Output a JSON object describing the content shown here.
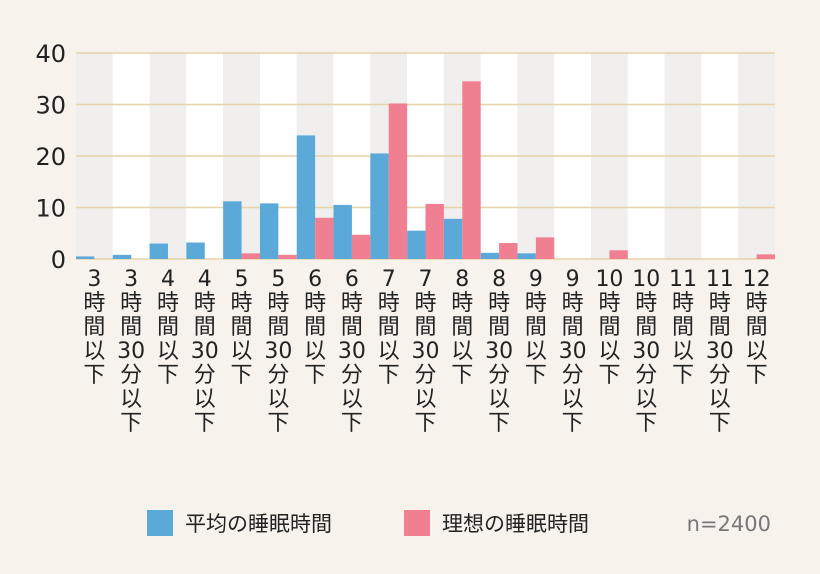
{
  "chart_data": {
    "type": "bar",
    "categories": [
      "3時間以下",
      "3時間30分以下",
      "4時間以下",
      "4時間30分以下",
      "5時間以下",
      "5時間30分以下",
      "6時間以下",
      "6時間30分以下",
      "7時間以下",
      "7時間30分以下",
      "8時間以下",
      "8時間30分以下",
      "9時間以下",
      "9時間30分以下",
      "10時間以下",
      "10時間30分以下",
      "11時間以下",
      "11時間30分以下",
      "12時間以下"
    ],
    "category_lines": [
      [
        "3",
        "時",
        "間",
        "以",
        "下"
      ],
      [
        "3",
        "時",
        "間",
        "30",
        "分",
        "以",
        "下"
      ],
      [
        "4",
        "時",
        "間",
        "以",
        "下"
      ],
      [
        "4",
        "時",
        "間",
        "30",
        "分",
        "以",
        "下"
      ],
      [
        "5",
        "時",
        "間",
        "以",
        "下"
      ],
      [
        "5",
        "時",
        "間",
        "30",
        "分",
        "以",
        "下"
      ],
      [
        "6",
        "時",
        "間",
        "以",
        "下"
      ],
      [
        "6",
        "時",
        "間",
        "30",
        "分",
        "以",
        "下"
      ],
      [
        "7",
        "時",
        "間",
        "以",
        "下"
      ],
      [
        "7",
        "時",
        "間",
        "30",
        "分",
        "以",
        "下"
      ],
      [
        "8",
        "時",
        "間",
        "以",
        "下"
      ],
      [
        "8",
        "時",
        "間",
        "30",
        "分",
        "以",
        "下"
      ],
      [
        "9",
        "時",
        "間",
        "以",
        "下"
      ],
      [
        "9",
        "時",
        "間",
        "30",
        "分",
        "以",
        "下"
      ],
      [
        "10",
        "時",
        "間",
        "以",
        "下"
      ],
      [
        "10",
        "時",
        "間",
        "30",
        "分",
        "以",
        "下"
      ],
      [
        "11",
        "時",
        "間",
        "以",
        "下"
      ],
      [
        "11",
        "時",
        "間",
        "30",
        "分",
        "以",
        "下"
      ],
      [
        "12",
        "時",
        "間",
        "以",
        "下"
      ]
    ],
    "series": [
      {
        "name": "平均の睡眠時間",
        "color": "#5aa9d9",
        "values": [
          0.5,
          0.8,
          3.0,
          3.2,
          11.2,
          10.8,
          24.0,
          10.5,
          20.5,
          5.5,
          7.8,
          1.2,
          1.1,
          0,
          0,
          0,
          0,
          0,
          0
        ]
      },
      {
        "name": "理想の睡眠時間",
        "color": "#f07f92",
        "values": [
          0,
          0,
          0,
          0,
          1.1,
          0.8,
          8.0,
          4.7,
          30.2,
          10.7,
          34.5,
          3.1,
          4.2,
          0,
          1.7,
          0,
          0,
          0,
          0.9
        ]
      }
    ],
    "yticks": [
      "0",
      "10",
      "20",
      "30",
      "40"
    ],
    "ylim": [
      0,
      40
    ],
    "grid": true,
    "legend_position": "bottom",
    "note": "n=2400"
  }
}
